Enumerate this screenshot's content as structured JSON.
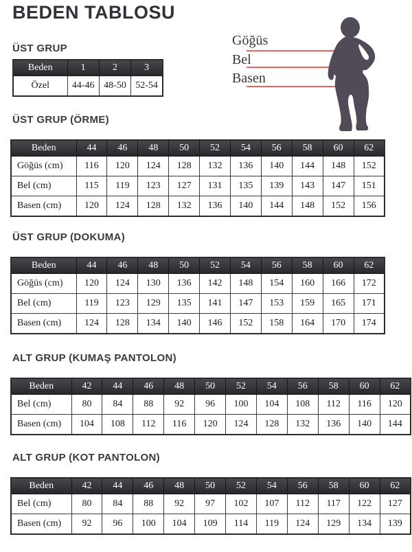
{
  "page": {
    "title": "BEDEN TABLOSU"
  },
  "figure": {
    "labels": [
      "Göğüs",
      "Bel",
      "Basen"
    ],
    "line_color": "#ee615e",
    "silhouette_color": "#504b57"
  },
  "sections": [
    {
      "heading": "ÜST GRUP",
      "table": {
        "header": [
          "Beden",
          "1",
          "2",
          "3"
        ],
        "rows": [
          [
            "Özel",
            "44-46",
            "48-50",
            "52-54"
          ]
        ]
      }
    },
    {
      "heading": "ÜST GRUP (ÖRME)",
      "table": {
        "header": [
          "Beden",
          "44",
          "46",
          "48",
          "50",
          "52",
          "54",
          "56",
          "58",
          "60",
          "62"
        ],
        "rows": [
          [
            "Göğüs (cm)",
            "116",
            "120",
            "124",
            "128",
            "132",
            "136",
            "140",
            "144",
            "148",
            "152"
          ],
          [
            "Bel (cm)",
            "115",
            "119",
            "123",
            "127",
            "131",
            "135",
            "139",
            "143",
            "147",
            "151"
          ],
          [
            "Basen (cm)",
            "120",
            "124",
            "128",
            "132",
            "136",
            "140",
            "144",
            "148",
            "152",
            "156"
          ]
        ]
      }
    },
    {
      "heading": "ÜST GRUP (DOKUMA)",
      "table": {
        "header": [
          "Beden",
          "44",
          "46",
          "48",
          "50",
          "52",
          "54",
          "56",
          "58",
          "60",
          "62"
        ],
        "rows": [
          [
            "Göğüs (cm)",
            "120",
            "124",
            "130",
            "136",
            "142",
            "148",
            "154",
            "160",
            "166",
            "172"
          ],
          [
            "Bel (cm)",
            "119",
            "123",
            "129",
            "135",
            "141",
            "147",
            "153",
            "159",
            "165",
            "171"
          ],
          [
            "Basen (cm)",
            "124",
            "128",
            "134",
            "140",
            "146",
            "152",
            "158",
            "164",
            "170",
            "174"
          ]
        ]
      }
    },
    {
      "heading": "ALT GRUP (KUMAŞ PANTOLON)",
      "table": {
        "header": [
          "Beden",
          "42",
          "44",
          "46",
          "48",
          "50",
          "52",
          "54",
          "56",
          "58",
          "60",
          "62"
        ],
        "rows": [
          [
            "Bel (cm)",
            "80",
            "84",
            "88",
            "92",
            "96",
            "100",
            "104",
            "108",
            "112",
            "116",
            "120"
          ],
          [
            "Basen (cm)",
            "104",
            "108",
            "112",
            "116",
            "120",
            "124",
            "128",
            "132",
            "136",
            "140",
            "144"
          ]
        ]
      }
    },
    {
      "heading": "ALT GRUP (KOT PANTOLON)",
      "table": {
        "header": [
          "Beden",
          "42",
          "44",
          "46",
          "48",
          "50",
          "52",
          "54",
          "56",
          "58",
          "60",
          "62"
        ],
        "rows": [
          [
            "Bel (cm)",
            "80",
            "84",
            "88",
            "92",
            "97",
            "102",
            "107",
            "112",
            "117",
            "122",
            "127"
          ],
          [
            "Basen (cm)",
            "92",
            "96",
            "100",
            "104",
            "109",
            "114",
            "119",
            "124",
            "129",
            "134",
            "139"
          ]
        ]
      }
    }
  ]
}
